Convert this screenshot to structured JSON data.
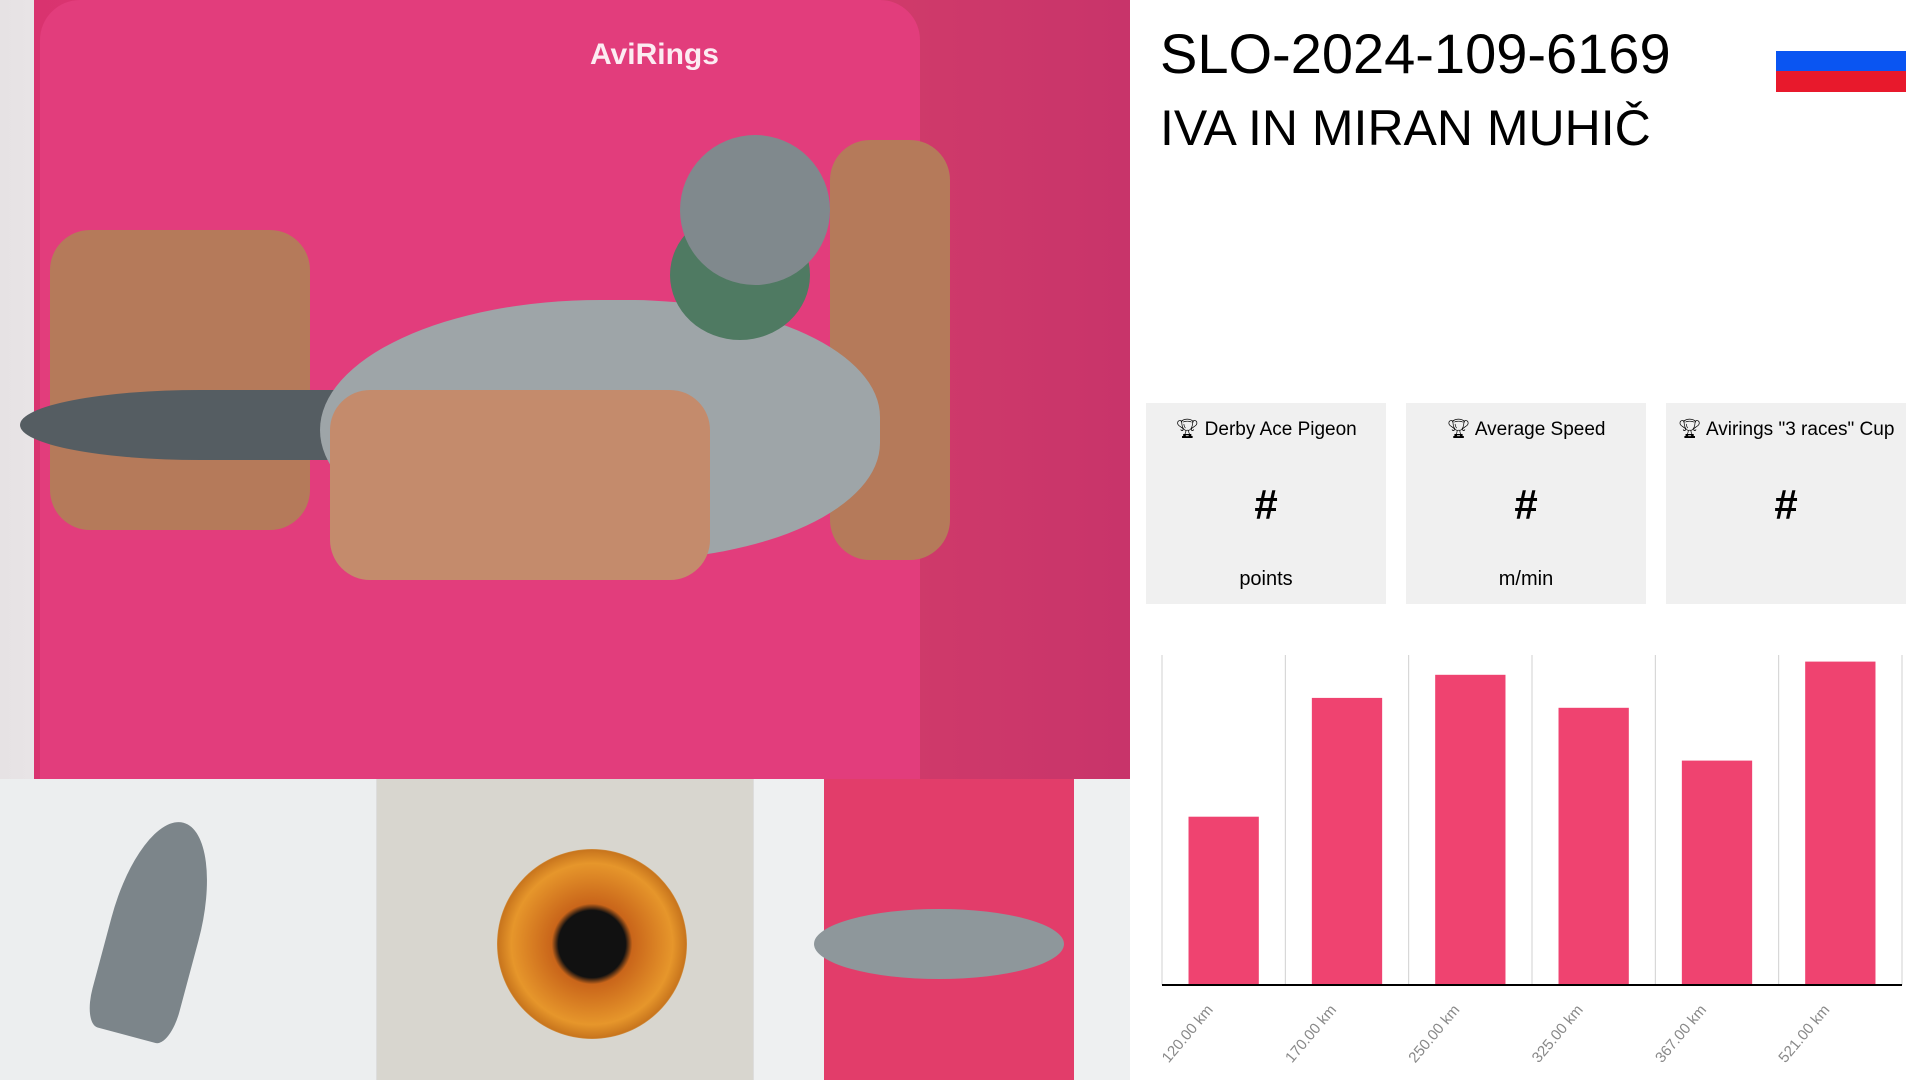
{
  "pigeon": {
    "ring": "SLO-2024-109-6169",
    "owner": "IVA IN MIRAN MUHIČ",
    "flag": {
      "country": "Slovenia",
      "colors": [
        "#ffffff",
        "#0a55f2",
        "#e8192c"
      ]
    }
  },
  "photos": {
    "brand_text": "AviRings",
    "items": [
      "main-photo",
      "wing-photo",
      "eye-photo",
      "hand-photo"
    ]
  },
  "cards": [
    {
      "icon": "trophy-icon",
      "label": "Derby Ace Pigeon",
      "value": "#",
      "unit": "points"
    },
    {
      "icon": "trophy-icon",
      "label": "Average Speed",
      "value": "#",
      "unit": "m/min"
    },
    {
      "icon": "trophy-icon",
      "label": "Avirings \"3 races\" Cup",
      "value": "#",
      "unit": ""
    }
  ],
  "chart_data": {
    "type": "bar",
    "categories": [
      "120.00 km",
      "170.00 km",
      "250.00 km",
      "325.00 km",
      "367.00 km",
      "521.00 km"
    ],
    "values": [
      51,
      87,
      94,
      84,
      68,
      98
    ],
    "ylim": [
      0,
      100
    ],
    "grid": "vertical",
    "color": "#ef4370"
  }
}
